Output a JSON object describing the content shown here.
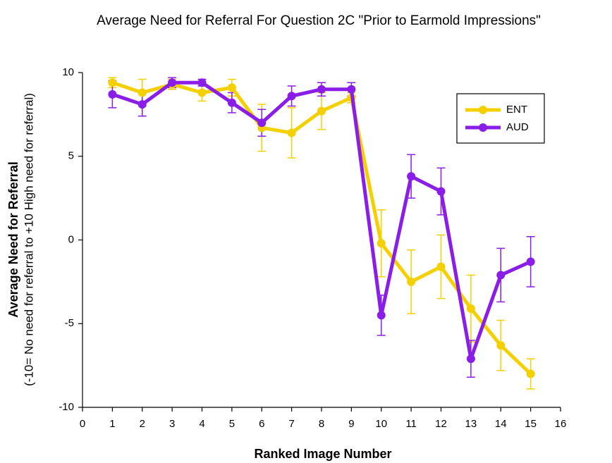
{
  "chart_data": {
    "type": "line",
    "title": "Average Need for Referral For Question 2C \"Prior to Earmold Impressions\"",
    "x_label": "Ranked Image Number",
    "y_label": "Average Need for Referral",
    "y_sublabel": "(-10= No need for referral to +10 High need for referral)",
    "x": [
      1,
      2,
      3,
      4,
      5,
      6,
      7,
      8,
      9,
      10,
      11,
      12,
      13,
      14,
      15
    ],
    "series": [
      {
        "name": "ENT",
        "color": "#f5d000",
        "values": [
          9.4,
          8.8,
          9.3,
          8.8,
          9.1,
          6.7,
          6.4,
          7.7,
          8.5,
          -0.2,
          -2.5,
          -1.6,
          -4.1,
          -6.3,
          -8.0
        ],
        "errors": [
          0.3,
          0.8,
          0.3,
          0.5,
          0.5,
          1.4,
          1.5,
          1.1,
          0.3,
          2.0,
          1.9,
          1.9,
          2.0,
          1.5,
          0.9
        ]
      },
      {
        "name": "AUD",
        "color": "#8a1ee8",
        "values": [
          8.7,
          8.1,
          9.4,
          9.4,
          8.2,
          7.0,
          8.6,
          9.0,
          9.0,
          -4.5,
          3.8,
          2.9,
          -7.1,
          -2.1,
          -1.3
        ],
        "errors": [
          0.8,
          0.7,
          0.3,
          0.2,
          0.6,
          0.8,
          0.6,
          0.4,
          0.4,
          1.2,
          1.3,
          1.4,
          1.1,
          1.6,
          1.5
        ]
      }
    ],
    "xlim": [
      0,
      16
    ],
    "xticks": [
      0,
      1,
      2,
      3,
      4,
      5,
      6,
      7,
      8,
      9,
      10,
      11,
      12,
      13,
      14,
      15,
      16
    ],
    "ylim": [
      -10,
      10
    ],
    "yticks": [
      -10,
      -5,
      0,
      5,
      10
    ],
    "grid": false,
    "legend": "upper right"
  }
}
